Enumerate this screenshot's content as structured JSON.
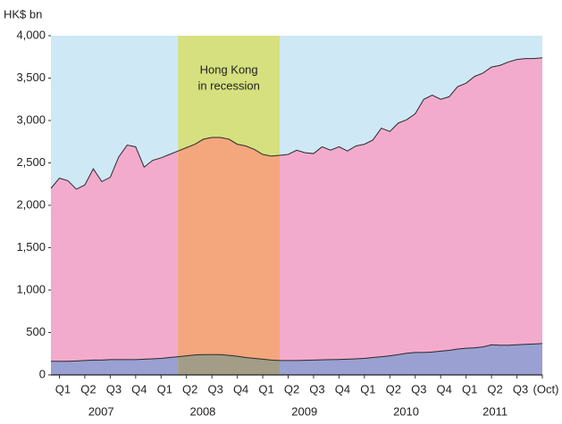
{
  "chart_data": {
    "type": "stacked_area",
    "y_label": "HK$ bn",
    "categories": [
      null,
      "Q1",
      null,
      null,
      "Q2",
      null,
      null,
      "Q3",
      null,
      null,
      "Q4",
      null,
      null,
      "Q1",
      null,
      null,
      "Q2",
      null,
      null,
      "Q3",
      null,
      null,
      "Q4",
      null,
      null,
      "Q1",
      null,
      null,
      "Q2",
      null,
      null,
      "Q3",
      null,
      null,
      "Q4",
      null,
      null,
      "Q1",
      null,
      null,
      "Q2",
      null,
      null,
      "Q3",
      null,
      null,
      "Q4",
      null,
      null,
      "Q1",
      null,
      null,
      "Q2",
      null,
      null,
      "Q3",
      null,
      null,
      "(Oct)"
    ],
    "years": [
      "2007",
      "2008",
      "2009",
      "2010",
      "2011"
    ],
    "series": [
      {
        "color": "#9aa0d2",
        "band_color": "#a39d88",
        "values": [
          160,
          160,
          160,
          165,
          170,
          175,
          175,
          180,
          180,
          180,
          180,
          185,
          190,
          195,
          205,
          215,
          225,
          235,
          240,
          240,
          240,
          230,
          220,
          205,
          195,
          185,
          175,
          170,
          170,
          170,
          172,
          175,
          178,
          180,
          182,
          185,
          190,
          195,
          205,
          215,
          225,
          240,
          255,
          265,
          265,
          270,
          280,
          290,
          305,
          315,
          320,
          330,
          355,
          350,
          350,
          355,
          360,
          365,
          370
        ]
      },
      {
        "color": "#f3abcd",
        "band_color": "#f4a67c",
        "values": [
          2040,
          2160,
          2130,
          2025,
          2070,
          2255,
          2105,
          2150,
          2390,
          2530,
          2510,
          2265,
          2340,
          2365,
          2395,
          2425,
          2455,
          2485,
          2540,
          2560,
          2560,
          2550,
          2500,
          2495,
          2465,
          2415,
          2405,
          2420,
          2430,
          2480,
          2448,
          2435,
          2512,
          2470,
          2508,
          2455,
          2510,
          2525,
          2565,
          2695,
          2645,
          2730,
          2755,
          2815,
          2985,
          3030,
          2970,
          2990,
          3095,
          3125,
          3200,
          3230,
          3275,
          3300,
          3340,
          3365,
          3370,
          3365,
          3370
        ]
      }
    ],
    "shaded_span": {
      "start": 15,
      "end": 27,
      "color": "#d6e07f",
      "label": [
        "Hong Kong",
        "in recession"
      ]
    },
    "background": "#cfe8f6",
    "ylim": [
      0,
      4000
    ],
    "yticks": [
      0,
      500,
      {
        "value": 1000,
        "label": "1,000"
      },
      {
        "value": 1500,
        "label": "1,500"
      },
      {
        "value": 2000,
        "label": "2,000"
      },
      {
        "value": 2500,
        "label": "2,500"
      },
      {
        "value": 3000,
        "label": "3,000"
      },
      {
        "value": 3500,
        "label": "3,500"
      },
      {
        "value": 4000,
        "label": "4,000"
      }
    ]
  }
}
